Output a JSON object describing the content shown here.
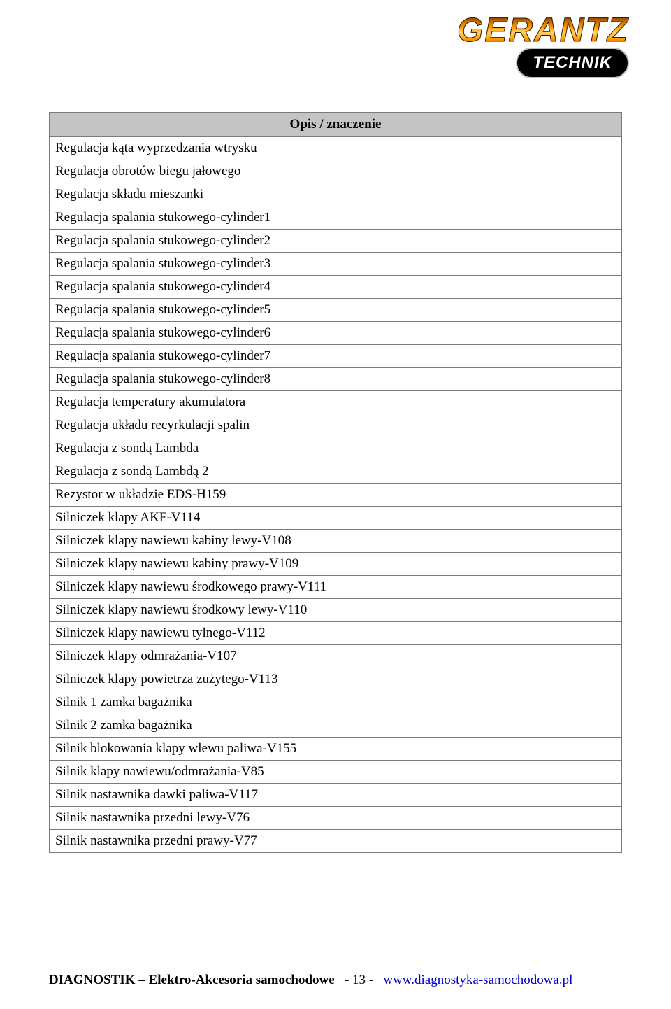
{
  "logo": {
    "brand": "GERANTZ",
    "sub": "TECHNIK"
  },
  "table": {
    "header": "Opis / znaczenie",
    "header_bg": "#c4c4c4",
    "border_color": "#7a7a7a",
    "rows": [
      "Regulacja kąta wyprzedzania wtrysku",
      "Regulacja obrotów biegu jałowego",
      "Regulacja składu mieszanki",
      "Regulacja spalania stukowego-cylinder1",
      "Regulacja spalania stukowego-cylinder2",
      "Regulacja spalania stukowego-cylinder3",
      "Regulacja spalania stukowego-cylinder4",
      "Regulacja spalania stukowego-cylinder5",
      "Regulacja spalania stukowego-cylinder6",
      "Regulacja spalania stukowego-cylinder7",
      "Regulacja spalania stukowego-cylinder8",
      "Regulacja temperatury akumulatora",
      "Regulacja układu recyrkulacji spalin",
      "Regulacja z sondą Lambda",
      "Regulacja z sondą Lambdą 2",
      "Rezystor w układzie EDS-H159",
      "Silniczek klapy AKF-V114",
      "Silniczek klapy nawiewu kabiny lewy-V108",
      "Silniczek klapy nawiewu kabiny prawy-V109",
      "Silniczek klapy nawiewu środkowego prawy-V111",
      "Silniczek klapy nawiewu środkowy lewy-V110",
      "Silniczek klapy nawiewu tylnego-V112",
      "Silniczek klapy odmrażania-V107",
      "Silniczek klapy powietrza zużytego-V113",
      "Silnik 1 zamka bagażnika",
      "Silnik 2 zamka bagażnika",
      "Silnik blokowania klapy wlewu paliwa-V155",
      "Silnik klapy nawiewu/odmrażania-V85",
      "Silnik nastawnika dawki paliwa-V117",
      "Silnik nastawnika przedni lewy-V76",
      "Silnik nastawnika przedni prawy-V77"
    ]
  },
  "footer": {
    "left": "DIAGNOSTIK – Elektro-Akcesoria samochodowe",
    "page": "- 13 -",
    "link_text": "www.diagnostyka-samochodowa.pl"
  }
}
